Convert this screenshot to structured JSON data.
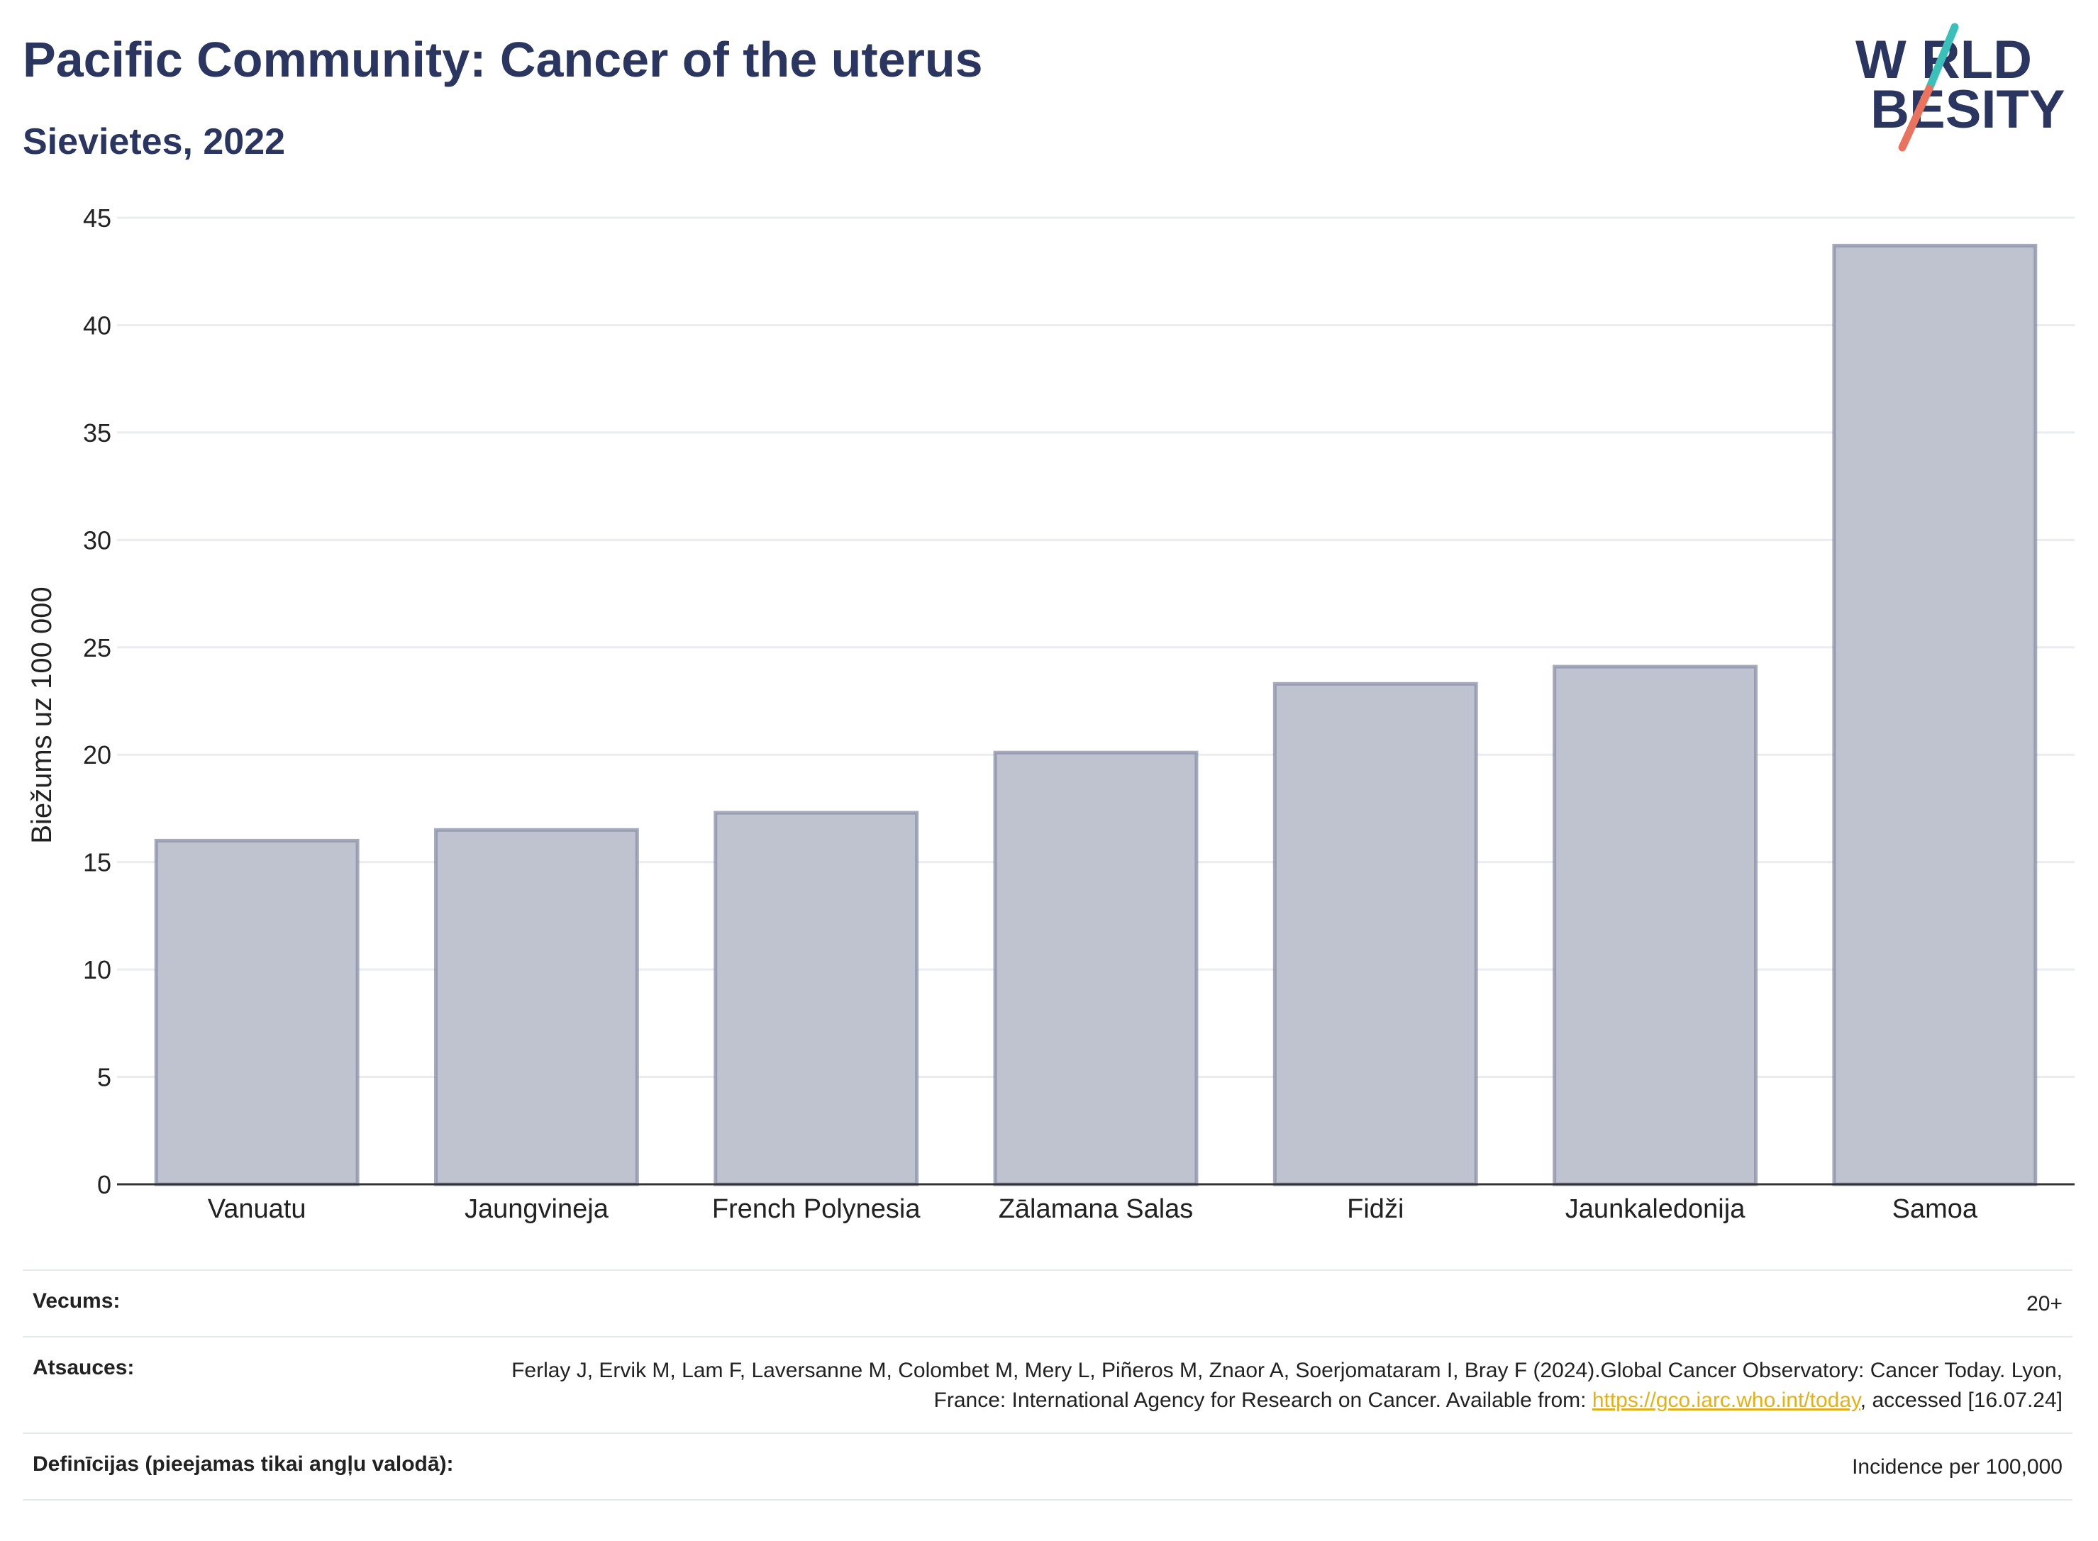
{
  "header": {
    "title": "Pacific Community: Cancer of the uterus",
    "subtitle": "Sievietes, 2022"
  },
  "logo": {
    "line1": "W RLD",
    "line2": " BESITY",
    "colors": {
      "text": "#2b3660",
      "slash_top": "#3bbfb8",
      "slash_bottom": "#e8735e"
    }
  },
  "chart_data": {
    "type": "bar",
    "categories": [
      "Vanuatu",
      "Jaungvineja",
      "French Polynesia",
      "Zālamana Salas",
      "Fidži",
      "Jaunkaledonija",
      "Samoa"
    ],
    "values": [
      16.0,
      16.5,
      17.3,
      20.1,
      23.3,
      24.1,
      43.7
    ],
    "ylabel": "Biežums uz 100 000",
    "ylim": [
      0,
      45
    ],
    "yticks": [
      0,
      5,
      10,
      15,
      20,
      25,
      30,
      35,
      40,
      45
    ],
    "grid": true,
    "colors": {
      "bar_fill": "#bfc2cf",
      "bar_stroke": "#8a8fa8"
    }
  },
  "meta": {
    "age_label": "Vecums:",
    "age_value": "20+",
    "refs_label": "Atsauces:",
    "refs_text_1": "Ferlay J, Ervik M, Lam F, Laversanne M, Colombet M, Mery L, Piñeros M, Znaor A, Soerjomataram I, Bray F (2024).Global Cancer Observatory: Cancer Today. Lyon, France: International Agency for Research on Cancer. Available from: ",
    "refs_link": "https://gco.iarc.who.int/today",
    "refs_text_2": ", accessed [16.07.24]",
    "defs_label": "Definīcijas (pieejamas tikai angļu valodā):",
    "defs_value": "Incidence per 100,000"
  }
}
